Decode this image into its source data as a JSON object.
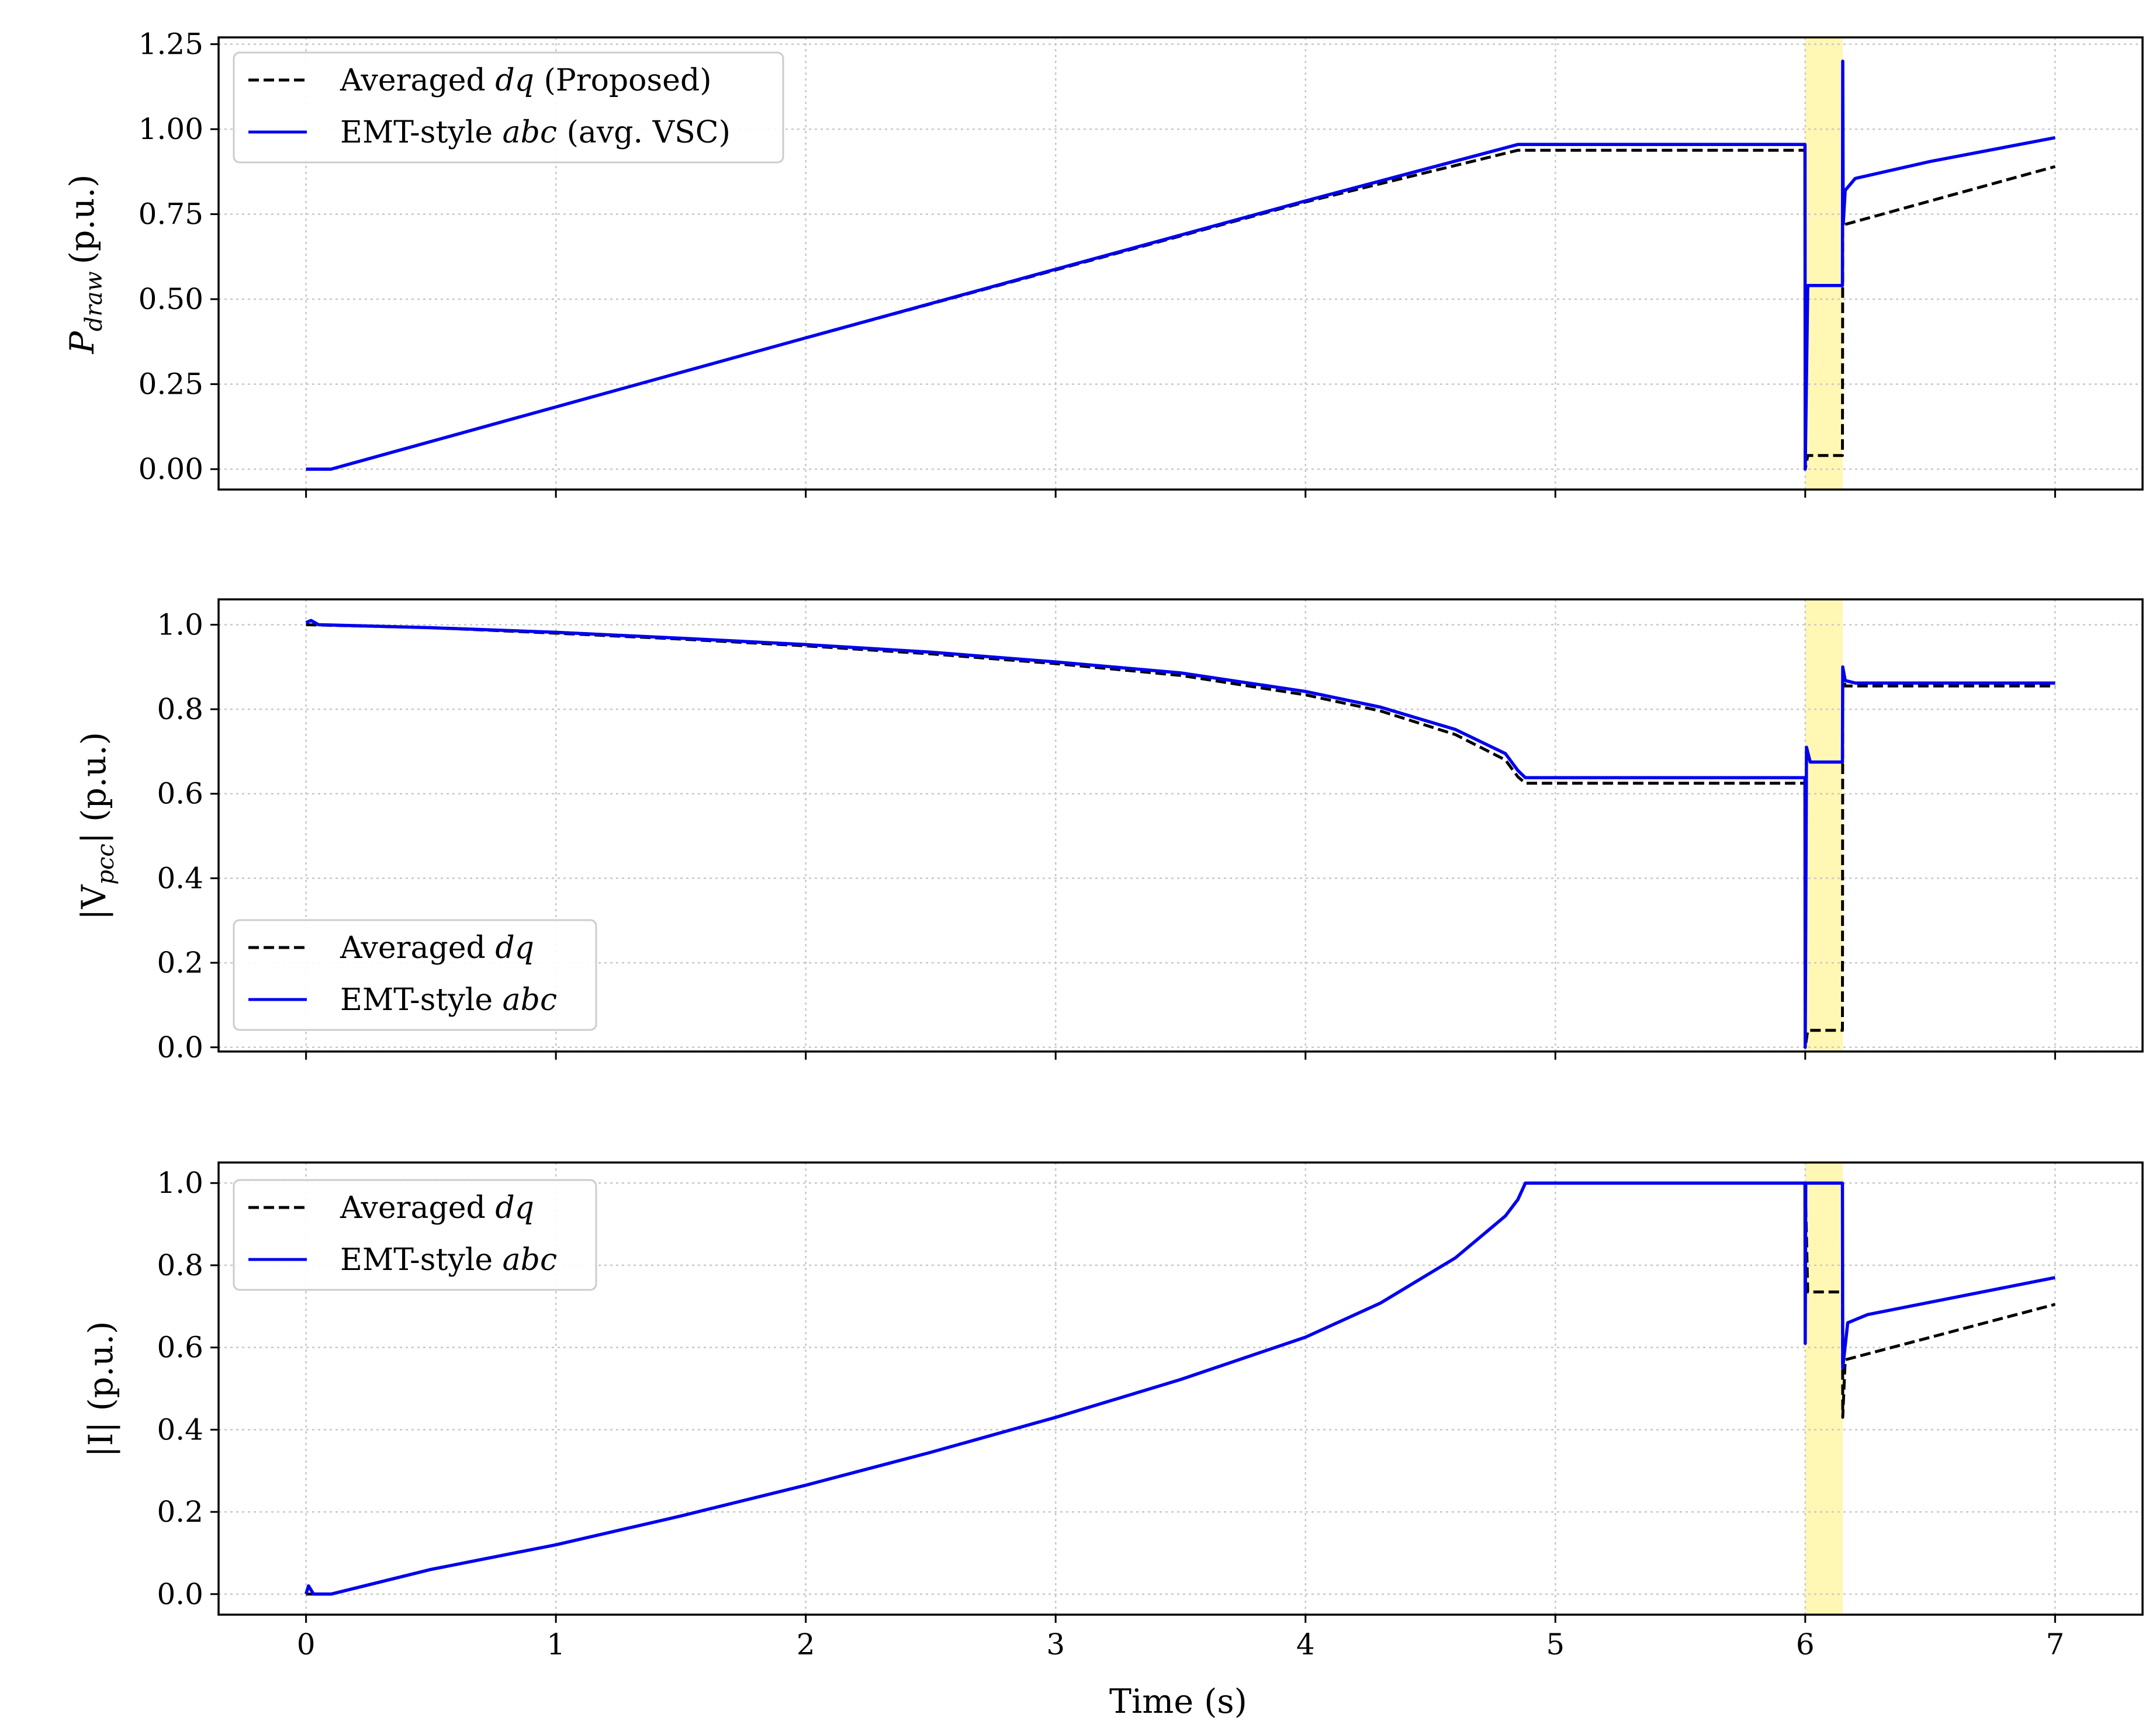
{
  "colors": {
    "dq": "#000000",
    "abc": "#0000ee",
    "fault_band": "#fff7b3",
    "grid": "#c8c8c8"
  },
  "xlabel": "Time (s)",
  "chart_data": [
    {
      "type": "line",
      "ylabel_main": "P",
      "ylabel_sub": "draw",
      "ylabel_unit": "(p.u.)",
      "xlim": [
        -0.35,
        7.35
      ],
      "ylim": [
        -0.06,
        1.27
      ],
      "yticks": [
        0.0,
        0.25,
        0.5,
        0.75,
        1.0,
        1.25
      ],
      "ytick_labels": [
        "0.00",
        "0.25",
        "0.50",
        "0.75",
        "1.00",
        "1.25"
      ],
      "xticks": [
        0,
        1,
        2,
        3,
        4,
        5,
        6,
        7
      ],
      "xtick_labels": [],
      "grid": true,
      "shaded_interval": [
        6.0,
        6.15
      ],
      "legend": {
        "placement": "top-left",
        "entries": [
          {
            "pre": "Averaged ",
            "it": "dq",
            "post": " (Proposed)"
          },
          {
            "pre": "EMT-style ",
            "it": "abc",
            "post": " (avg. VSC)"
          }
        ]
      },
      "series": [
        {
          "name": "Averaged dq (Proposed)",
          "style": "dashed",
          "x": [
            0,
            0.1,
            1,
            2,
            3,
            4,
            4.85,
            4.88,
            5.999,
            6.0,
            6.01,
            6.149,
            6.15,
            6.16,
            7.0
          ],
          "y": [
            0,
            0,
            0.183,
            0.386,
            0.586,
            0.786,
            0.938,
            0.938,
            0.938,
            0.0,
            0.04,
            0.04,
            0.72,
            0.72,
            0.89
          ]
        },
        {
          "name": "EMT-style abc (avg. VSC)",
          "style": "solid",
          "x": [
            0,
            0.1,
            1,
            2,
            3,
            4,
            4.85,
            4.88,
            5.999,
            6.0,
            6.01,
            6.149,
            6.15,
            6.152,
            6.16,
            6.2,
            6.5,
            7.0
          ],
          "y": [
            0,
            0,
            0.183,
            0.386,
            0.588,
            0.789,
            0.955,
            0.955,
            0.955,
            0.0,
            0.54,
            0.54,
            1.2,
            0.72,
            0.82,
            0.855,
            0.905,
            0.975
          ]
        }
      ]
    },
    {
      "type": "line",
      "ylabel_pre": "|V",
      "ylabel_sub": "pcc",
      "ylabel_post": "| (p.u.)",
      "xlim": [
        -0.35,
        7.35
      ],
      "ylim": [
        -0.01,
        1.06
      ],
      "yticks": [
        0.0,
        0.2,
        0.4,
        0.6,
        0.8,
        1.0
      ],
      "ytick_labels": [
        "0.0",
        "0.2",
        "0.4",
        "0.6",
        "0.8",
        "1.0"
      ],
      "xticks": [
        0,
        1,
        2,
        3,
        4,
        5,
        6,
        7
      ],
      "xtick_labels": [],
      "grid": true,
      "shaded_interval": [
        6.0,
        6.15
      ],
      "legend": {
        "placement": "bottom-left",
        "entries": [
          {
            "pre": "Averaged ",
            "it": "dq",
            "post": ""
          },
          {
            "pre": "EMT-style ",
            "it": "abc",
            "post": ""
          }
        ]
      },
      "series": [
        {
          "name": "Averaged dq",
          "style": "dashed",
          "x": [
            0,
            0.5,
            1,
            1.5,
            2,
            2.5,
            3,
            3.5,
            4,
            4.3,
            4.6,
            4.8,
            4.85,
            4.88,
            5.999,
            6.0,
            6.01,
            6.149,
            6.15,
            6.16,
            7.0
          ],
          "y": [
            1.0,
            0.993,
            0.98,
            0.966,
            0.95,
            0.931,
            0.908,
            0.88,
            0.834,
            0.796,
            0.74,
            0.68,
            0.64,
            0.625,
            0.625,
            0.0,
            0.04,
            0.04,
            0.88,
            0.855,
            0.855
          ]
        },
        {
          "name": "EMT-style abc",
          "style": "solid",
          "x": [
            0,
            0.02,
            0.05,
            0.5,
            1,
            1.5,
            2,
            2.5,
            3,
            3.5,
            4,
            4.3,
            4.6,
            4.8,
            4.85,
            4.88,
            5.999,
            6.0,
            6.005,
            6.02,
            6.149,
            6.15,
            6.16,
            6.2,
            7.0
          ],
          "y": [
            1.005,
            1.01,
            1.0,
            0.993,
            0.982,
            0.968,
            0.953,
            0.935,
            0.912,
            0.886,
            0.842,
            0.805,
            0.752,
            0.695,
            0.655,
            0.638,
            0.638,
            0.0,
            0.71,
            0.675,
            0.675,
            0.9,
            0.868,
            0.862,
            0.862
          ]
        }
      ]
    },
    {
      "type": "line",
      "ylabel_main": "|I| (p.u.)",
      "xlim": [
        -0.35,
        7.35
      ],
      "ylim": [
        -0.05,
        1.05
      ],
      "yticks": [
        0.0,
        0.2,
        0.4,
        0.6,
        0.8,
        1.0
      ],
      "ytick_labels": [
        "0.0",
        "0.2",
        "0.4",
        "0.6",
        "0.8",
        "1.0"
      ],
      "xticks": [
        0,
        1,
        2,
        3,
        4,
        5,
        6,
        7
      ],
      "xtick_labels": [
        "0",
        "1",
        "2",
        "3",
        "4",
        "5",
        "6",
        "7"
      ],
      "grid": true,
      "shaded_interval": [
        6.0,
        6.15
      ],
      "legend": {
        "placement": "top-left",
        "entries": [
          {
            "pre": "Averaged ",
            "it": "dq",
            "post": ""
          },
          {
            "pre": "EMT-style ",
            "it": "abc",
            "post": ""
          }
        ]
      },
      "series": [
        {
          "name": "Averaged dq",
          "style": "dashed",
          "x": [
            0,
            0.1,
            0.5,
            1,
            1.5,
            2,
            2.5,
            3,
            3.5,
            4,
            4.3,
            4.6,
            4.8,
            4.85,
            4.88,
            5.999,
            6.0,
            6.01,
            6.149,
            6.15,
            6.16,
            7.0
          ],
          "y": [
            0,
            0,
            0.06,
            0.12,
            0.19,
            0.265,
            0.345,
            0.43,
            0.522,
            0.625,
            0.708,
            0.818,
            0.92,
            0.96,
            1.0,
            1.0,
            1.0,
            0.735,
            0.735,
            0.43,
            0.57,
            0.705
          ]
        },
        {
          "name": "EMT-style abc",
          "style": "solid",
          "x": [
            0,
            0.01,
            0.03,
            0.1,
            0.5,
            1,
            1.5,
            2,
            2.5,
            3,
            3.5,
            4,
            4.3,
            4.6,
            4.8,
            4.85,
            4.88,
            5.999,
            6.0,
            6.002,
            6.149,
            6.15,
            6.17,
            6.25,
            6.5,
            7.0
          ],
          "y": [
            0.0,
            0.02,
            0.0,
            0.0,
            0.06,
            0.12,
            0.19,
            0.265,
            0.345,
            0.43,
            0.522,
            0.625,
            0.708,
            0.818,
            0.92,
            0.96,
            1.0,
            1.0,
            0.61,
            1.0,
            1.0,
            0.55,
            0.66,
            0.68,
            0.71,
            0.77
          ]
        }
      ]
    }
  ]
}
